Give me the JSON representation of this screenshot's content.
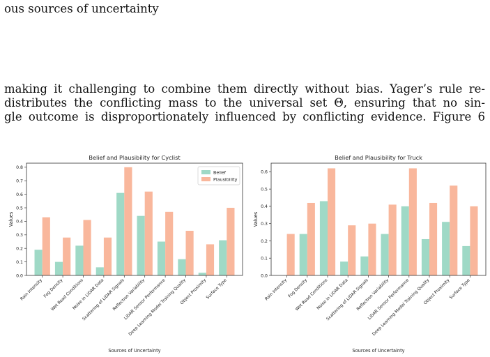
{
  "paper": {
    "top_fragment": "ous sources of uncertainty",
    "paragraph_lines": [
      "making it challenging to combine them directly without bias. Yager’s rule re-",
      "distributes the conflicting mass to the universal set Θ, ensuring that no sin-",
      "gle outcome is disproportionately influenced by conflicting evidence. Figure 6"
    ]
  },
  "colors": {
    "belief": "#9fd9c6",
    "plausibility": "#f9b79c"
  },
  "chart_data": [
    {
      "type": "bar",
      "title": "Belief and Plausibility for Cyclist",
      "xlabel": "Sources of Uncertainty",
      "ylabel": "Values",
      "ylim": [
        0,
        0.83
      ],
      "yticks": [
        "0.0",
        "0.1",
        "0.2",
        "0.3",
        "0.4",
        "0.5",
        "0.6",
        "0.7",
        "0.8"
      ],
      "legend": "top-right",
      "categories": [
        "Rain Intensity",
        "Fog Density",
        "Wet Road Conditions",
        "Noise in LiDAR Data",
        "Scattering of LiDAR Signals",
        "Reflection Variability",
        "LiDAR Sensor Performance",
        "Deep Learning Model Training Quality",
        "Object Proximity",
        "Surface Type"
      ],
      "series": [
        {
          "name": "Belief",
          "values": [
            0.19,
            0.1,
            0.22,
            0.06,
            0.61,
            0.44,
            0.25,
            0.12,
            0.02,
            0.26
          ]
        },
        {
          "name": "Plausibility",
          "values": [
            0.43,
            0.28,
            0.41,
            0.28,
            0.8,
            0.62,
            0.47,
            0.33,
            0.23,
            0.5
          ]
        }
      ]
    },
    {
      "type": "bar",
      "title": "Belief and Plausibility for Truck",
      "xlabel": "Sources of Uncertainty",
      "ylabel": "Values",
      "ylim": [
        0,
        0.65
      ],
      "yticks": [
        "0.0",
        "0.1",
        "0.2",
        "0.3",
        "0.4",
        "0.5",
        "0.6"
      ],
      "categories": [
        "Rain Intensity",
        "Fog Density",
        "Wet Road Conditions",
        "Noise in LiDAR Data",
        "Scattering of LiDAR Signals",
        "Reflection Variability",
        "LiDAR Sensor Performance",
        "Deep Learning Model Training Quality",
        "Object Proximity",
        "Surface Type"
      ],
      "series": [
        {
          "name": "Belief",
          "values": [
            0.0,
            0.24,
            0.43,
            0.08,
            0.11,
            0.24,
            0.4,
            0.21,
            0.31,
            0.17
          ]
        },
        {
          "name": "Plausibility",
          "values": [
            0.24,
            0.42,
            0.62,
            0.29,
            0.3,
            0.41,
            0.62,
            0.42,
            0.52,
            0.4
          ]
        }
      ]
    }
  ]
}
